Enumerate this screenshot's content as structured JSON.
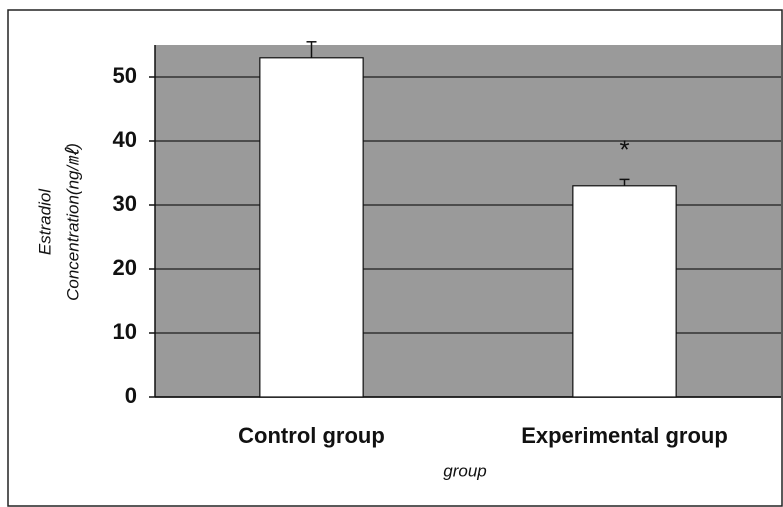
{
  "chart_data": {
    "type": "bar",
    "xlabel": "group",
    "ylabel": [
      "Estradiol",
      "Concentration(ng/㎖)"
    ],
    "categories": [
      "Control group",
      "Experimental group"
    ],
    "values": [
      53,
      33
    ],
    "errors": [
      2.5,
      1
    ],
    "annotation": "*",
    "color": "#ffffff",
    "background": "#9a9a9a",
    "ylim": [
      0,
      55
    ],
    "yticks": [
      0,
      10,
      20,
      30,
      40,
      50
    ],
    "grid": true
  }
}
